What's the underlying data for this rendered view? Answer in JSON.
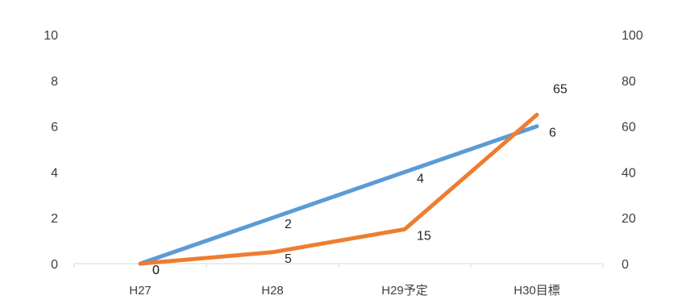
{
  "chart_data": {
    "type": "line",
    "categories": [
      "H27",
      "H28",
      "H29予定",
      "H30目標"
    ],
    "y_left": {
      "ticks": [
        "0",
        "2",
        "4",
        "6",
        "8",
        "10"
      ],
      "range": [
        0,
        10
      ]
    },
    "y_right": {
      "ticks": [
        "0",
        "20",
        "40",
        "60",
        "80",
        "100"
      ],
      "range": [
        0,
        100
      ]
    },
    "series": [
      {
        "axis": "left",
        "color": "#5B9BD5",
        "values": [
          0,
          2,
          4,
          6
        ],
        "labels": [
          "0",
          "2",
          "4",
          "6"
        ]
      },
      {
        "axis": "right",
        "color": "#ED7D31",
        "values": [
          0,
          5,
          15,
          65
        ],
        "labels": [
          "0",
          "5",
          "15",
          "65"
        ]
      }
    ],
    "grid": false,
    "legend": "none"
  }
}
